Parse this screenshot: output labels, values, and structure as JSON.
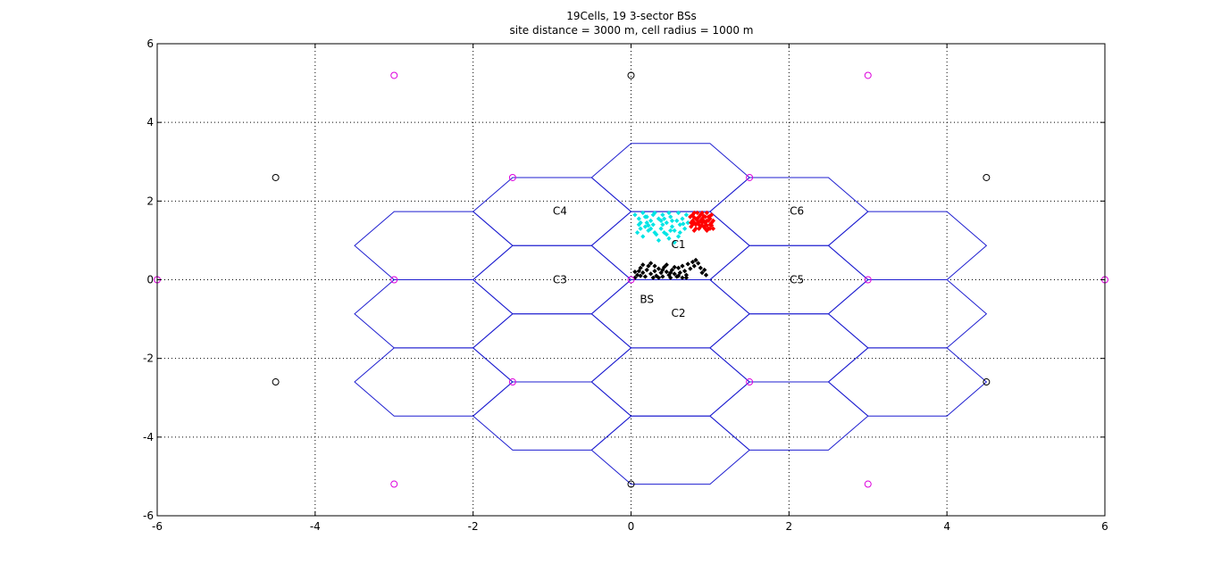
{
  "chart_data": {
    "type": "scatter",
    "title": "19Cells, 19 3-sector BSs",
    "subtitle": "site distance = 3000 m, cell radius = 1000 m",
    "xlabel": "",
    "ylabel": "",
    "xlim": [
      -6,
      6
    ],
    "ylim": [
      -6,
      6
    ],
    "xticks": [
      -6,
      -4,
      -2,
      0,
      2,
      4,
      6
    ],
    "yticks": [
      -6,
      -4,
      -2,
      0,
      2,
      4,
      6
    ],
    "grid": true,
    "colors": {
      "hex": "#1f1fd0",
      "site_black": "#000000",
      "site_magenta": "#dd00dd",
      "users_black": "#000000",
      "users_cyan": "#00e5e5",
      "users_red": "#ff0000"
    },
    "cell_labels": [
      {
        "text": "C1",
        "x": 0.6,
        "y": 0.9
      },
      {
        "text": "C2",
        "x": 0.6,
        "y": -0.85
      },
      {
        "text": "C3",
        "x": -0.9,
        "y": 0.0
      },
      {
        "text": "C4",
        "x": -0.9,
        "y": 1.75
      },
      {
        "text": "C5",
        "x": 2.1,
        "y": 0.0
      },
      {
        "text": "C6",
        "x": 2.1,
        "y": 1.75
      },
      {
        "text": "BS",
        "x": 0.2,
        "y": -0.5
      }
    ],
    "hex_centers": [
      [
        0.5,
        2.598
      ],
      [
        0.5,
        0.866
      ],
      [
        0.5,
        -0.866
      ],
      [
        0.5,
        -2.598
      ],
      [
        0.5,
        -4.33
      ],
      [
        -1.0,
        1.732
      ],
      [
        -1.0,
        0.0
      ],
      [
        -1.0,
        -1.732
      ],
      [
        -1.0,
        -3.464
      ],
      [
        2.0,
        1.732
      ],
      [
        2.0,
        0.0
      ],
      [
        2.0,
        -1.732
      ],
      [
        2.0,
        -3.464
      ],
      [
        -2.5,
        0.866
      ],
      [
        -2.5,
        -0.866
      ],
      [
        -2.5,
        -2.598
      ],
      [
        3.5,
        0.866
      ],
      [
        3.5,
        -0.866
      ],
      [
        3.5,
        -2.598
      ]
    ],
    "hex_radius": 1.0,
    "sites_black": [
      [
        0,
        5.196
      ],
      [
        0,
        -5.196
      ],
      [
        -4.5,
        2.598
      ],
      [
        -4.5,
        -2.598
      ],
      [
        4.5,
        2.598
      ],
      [
        4.5,
        -2.598
      ]
    ],
    "sites_magenta": [
      [
        0,
        0
      ],
      [
        1.5,
        2.598
      ],
      [
        -1.5,
        2.598
      ],
      [
        1.5,
        -2.598
      ],
      [
        -1.5,
        -2.598
      ],
      [
        3.0,
        0
      ],
      [
        -3.0,
        0
      ],
      [
        6.0,
        0
      ],
      [
        -6.0,
        0
      ],
      [
        3.0,
        5.196
      ],
      [
        -3.0,
        5.196
      ],
      [
        3.0,
        -5.196
      ],
      [
        -3.0,
        -5.196
      ]
    ],
    "users_black": [
      [
        0.05,
        0.05
      ],
      [
        0.08,
        0.12
      ],
      [
        0.1,
        0.22
      ],
      [
        0.12,
        0.3
      ],
      [
        0.15,
        0.18
      ],
      [
        0.18,
        0.08
      ],
      [
        0.2,
        0.25
      ],
      [
        0.22,
        0.35
      ],
      [
        0.25,
        0.15
      ],
      [
        0.28,
        0.05
      ],
      [
        0.3,
        0.22
      ],
      [
        0.32,
        0.1
      ],
      [
        0.35,
        0.28
      ],
      [
        0.38,
        0.18
      ],
      [
        0.4,
        0.08
      ],
      [
        0.42,
        0.32
      ],
      [
        0.45,
        0.2
      ],
      [
        0.48,
        0.12
      ],
      [
        0.5,
        0.05
      ],
      [
        0.52,
        0.25
      ],
      [
        0.55,
        0.15
      ],
      [
        0.58,
        0.08
      ],
      [
        0.6,
        0.3
      ],
      [
        0.62,
        0.18
      ],
      [
        0.65,
        0.05
      ],
      [
        0.68,
        0.22
      ],
      [
        0.7,
        0.12
      ],
      [
        0.72,
        0.4
      ],
      [
        0.75,
        0.28
      ],
      [
        0.78,
        0.45
      ],
      [
        0.8,
        0.35
      ],
      [
        0.82,
        0.5
      ],
      [
        0.85,
        0.42
      ],
      [
        0.88,
        0.3
      ],
      [
        0.9,
        0.18
      ],
      [
        0.93,
        0.25
      ],
      [
        0.95,
        0.12
      ],
      [
        0.15,
        0.38
      ],
      [
        0.25,
        0.42
      ],
      [
        0.35,
        0.05
      ],
      [
        0.45,
        0.38
      ],
      [
        0.55,
        0.32
      ],
      [
        0.65,
        0.35
      ],
      [
        0.05,
        0.2
      ],
      [
        0.12,
        0.1
      ],
      [
        0.3,
        0.35
      ],
      [
        0.4,
        0.25
      ],
      [
        0.5,
        0.18
      ],
      [
        0.6,
        0.1
      ],
      [
        0.7,
        0.05
      ]
    ],
    "users_cyan": [
      [
        0.05,
        1.65
      ],
      [
        0.1,
        1.55
      ],
      [
        0.12,
        1.45
      ],
      [
        0.15,
        1.7
      ],
      [
        0.18,
        1.35
      ],
      [
        0.2,
        1.6
      ],
      [
        0.22,
        1.25
      ],
      [
        0.25,
        1.5
      ],
      [
        0.28,
        1.4
      ],
      [
        0.3,
        1.7
      ],
      [
        0.32,
        1.15
      ],
      [
        0.35,
        1.55
      ],
      [
        0.38,
        1.3
      ],
      [
        0.4,
        1.65
      ],
      [
        0.42,
        1.2
      ],
      [
        0.45,
        1.45
      ],
      [
        0.48,
        1.05
      ],
      [
        0.5,
        1.6
      ],
      [
        0.52,
        1.35
      ],
      [
        0.55,
        1.25
      ],
      [
        0.58,
        1.5
      ],
      [
        0.6,
        1.7
      ],
      [
        0.62,
        1.4
      ],
      [
        0.65,
        1.55
      ],
      [
        0.68,
        1.3
      ],
      [
        0.7,
        1.65
      ],
      [
        0.72,
        1.45
      ],
      [
        0.75,
        1.6
      ],
      [
        0.08,
        1.2
      ],
      [
        0.15,
        1.1
      ],
      [
        0.25,
        1.3
      ],
      [
        0.35,
        1.0
      ],
      [
        0.45,
        1.15
      ],
      [
        0.55,
        0.95
      ],
      [
        0.2,
        1.45
      ],
      [
        0.3,
        1.2
      ],
      [
        0.4,
        1.4
      ],
      [
        0.5,
        1.25
      ],
      [
        0.6,
        1.1
      ],
      [
        0.12,
        1.3
      ],
      [
        0.42,
        1.55
      ],
      [
        0.62,
        1.2
      ],
      [
        0.18,
        1.6
      ],
      [
        0.28,
        1.65
      ],
      [
        0.48,
        1.7
      ],
      [
        0.52,
        1.5
      ],
      [
        0.38,
        1.5
      ],
      [
        0.66,
        1.42
      ],
      [
        0.22,
        1.38
      ],
      [
        0.1,
        1.4
      ]
    ],
    "users_red": [
      [
        0.75,
        1.6
      ],
      [
        0.78,
        1.5
      ],
      [
        0.8,
        1.7
      ],
      [
        0.82,
        1.4
      ],
      [
        0.84,
        1.55
      ],
      [
        0.86,
        1.3
      ],
      [
        0.88,
        1.65
      ],
      [
        0.9,
        1.45
      ],
      [
        0.92,
        1.35
      ],
      [
        0.94,
        1.6
      ],
      [
        0.96,
        1.25
      ],
      [
        0.98,
        1.5
      ],
      [
        1.0,
        1.4
      ],
      [
        1.02,
        1.65
      ],
      [
        1.04,
        1.3
      ],
      [
        0.76,
        1.35
      ],
      [
        0.8,
        1.25
      ],
      [
        0.85,
        1.45
      ],
      [
        0.9,
        1.7
      ],
      [
        0.95,
        1.4
      ],
      [
        1.0,
        1.55
      ],
      [
        0.78,
        1.65
      ],
      [
        0.82,
        1.55
      ],
      [
        0.86,
        1.6
      ],
      [
        0.88,
        1.35
      ],
      [
        0.92,
        1.5
      ],
      [
        0.96,
        1.7
      ],
      [
        0.98,
        1.3
      ],
      [
        1.02,
        1.45
      ],
      [
        0.84,
        1.7
      ],
      [
        0.8,
        1.45
      ],
      [
        0.9,
        1.55
      ],
      [
        0.94,
        1.3
      ],
      [
        1.0,
        1.3
      ],
      [
        0.76,
        1.45
      ],
      [
        0.86,
        1.4
      ],
      [
        0.96,
        1.5
      ],
      [
        1.04,
        1.5
      ],
      [
        0.82,
        1.3
      ],
      [
        0.92,
        1.62
      ],
      [
        0.88,
        1.5
      ],
      [
        0.98,
        1.6
      ],
      [
        0.78,
        1.4
      ],
      [
        0.94,
        1.45
      ],
      [
        1.02,
        1.38
      ],
      [
        0.84,
        1.5
      ],
      [
        0.9,
        1.38
      ],
      [
        0.96,
        1.38
      ],
      [
        0.8,
        1.58
      ],
      [
        1.0,
        1.62
      ]
    ]
  }
}
